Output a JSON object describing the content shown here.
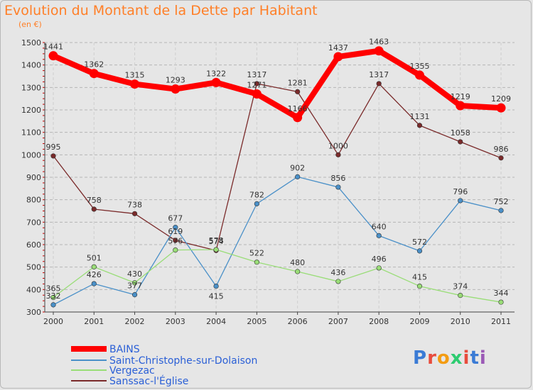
{
  "title": "Evolution du Montant de la Dette par Habitant",
  "subtitle": "(en €)",
  "logo": "Proxiti",
  "chart_data": {
    "type": "line",
    "title": "Evolution du Montant de la Dette par Habitant",
    "ylabel": "(en €)",
    "xlabel": "",
    "x": [
      "2000",
      "2001",
      "2002",
      "2003",
      "2004",
      "2005",
      "2006",
      "2007",
      "2008",
      "2009",
      "2010",
      "2011"
    ],
    "ylim": [
      300,
      1500
    ],
    "yticks": [
      300,
      400,
      500,
      600,
      700,
      800,
      900,
      1000,
      1100,
      1200,
      1300,
      1400,
      1500
    ],
    "grid": "horizontal dashed",
    "legend": "bottom-left",
    "series": [
      {
        "name": "BAINS",
        "color": "#ff0000",
        "values": [
          1441,
          1362,
          1315,
          1293,
          1322,
          1271,
          1166,
          1437,
          1463,
          1355,
          1219,
          1209
        ],
        "labels": [
          "1441",
          "1362",
          "1315",
          "1293",
          "1322",
          "1271",
          "1166",
          "1437",
          "1463",
          "1355",
          "1219",
          "1209"
        ]
      },
      {
        "name": "Saint-Christophe-sur-Dolaison",
        "color": "#4a90c8",
        "values": [
          332,
          426,
          377,
          677,
          415,
          782,
          902,
          856,
          640,
          572,
          796,
          752
        ],
        "labels": [
          "332",
          "426",
          "377",
          "677",
          "415",
          "782",
          "902",
          "856",
          "640",
          "572",
          "796",
          "752"
        ]
      },
      {
        "name": "Vergezac",
        "color": "#99dd77",
        "values": [
          365,
          501,
          430,
          576,
          578,
          522,
          480,
          436,
          496,
          415,
          374,
          344
        ],
        "labels": [
          "365",
          "501",
          "430",
          "576",
          "578",
          "522",
          "480",
          "436",
          "496",
          "415",
          "374",
          "344"
        ]
      },
      {
        "name": "Sanssac-l'Église",
        "color": "#7a2a2a",
        "values": [
          995,
          758,
          738,
          619,
          574,
          1317,
          1281,
          1000,
          1317,
          1131,
          1058,
          986
        ],
        "labels": [
          "995",
          "758",
          "738",
          "619",
          "574",
          "1317",
          "1281",
          "1000",
          "1317",
          "1131",
          "1058",
          "986"
        ]
      }
    ]
  }
}
